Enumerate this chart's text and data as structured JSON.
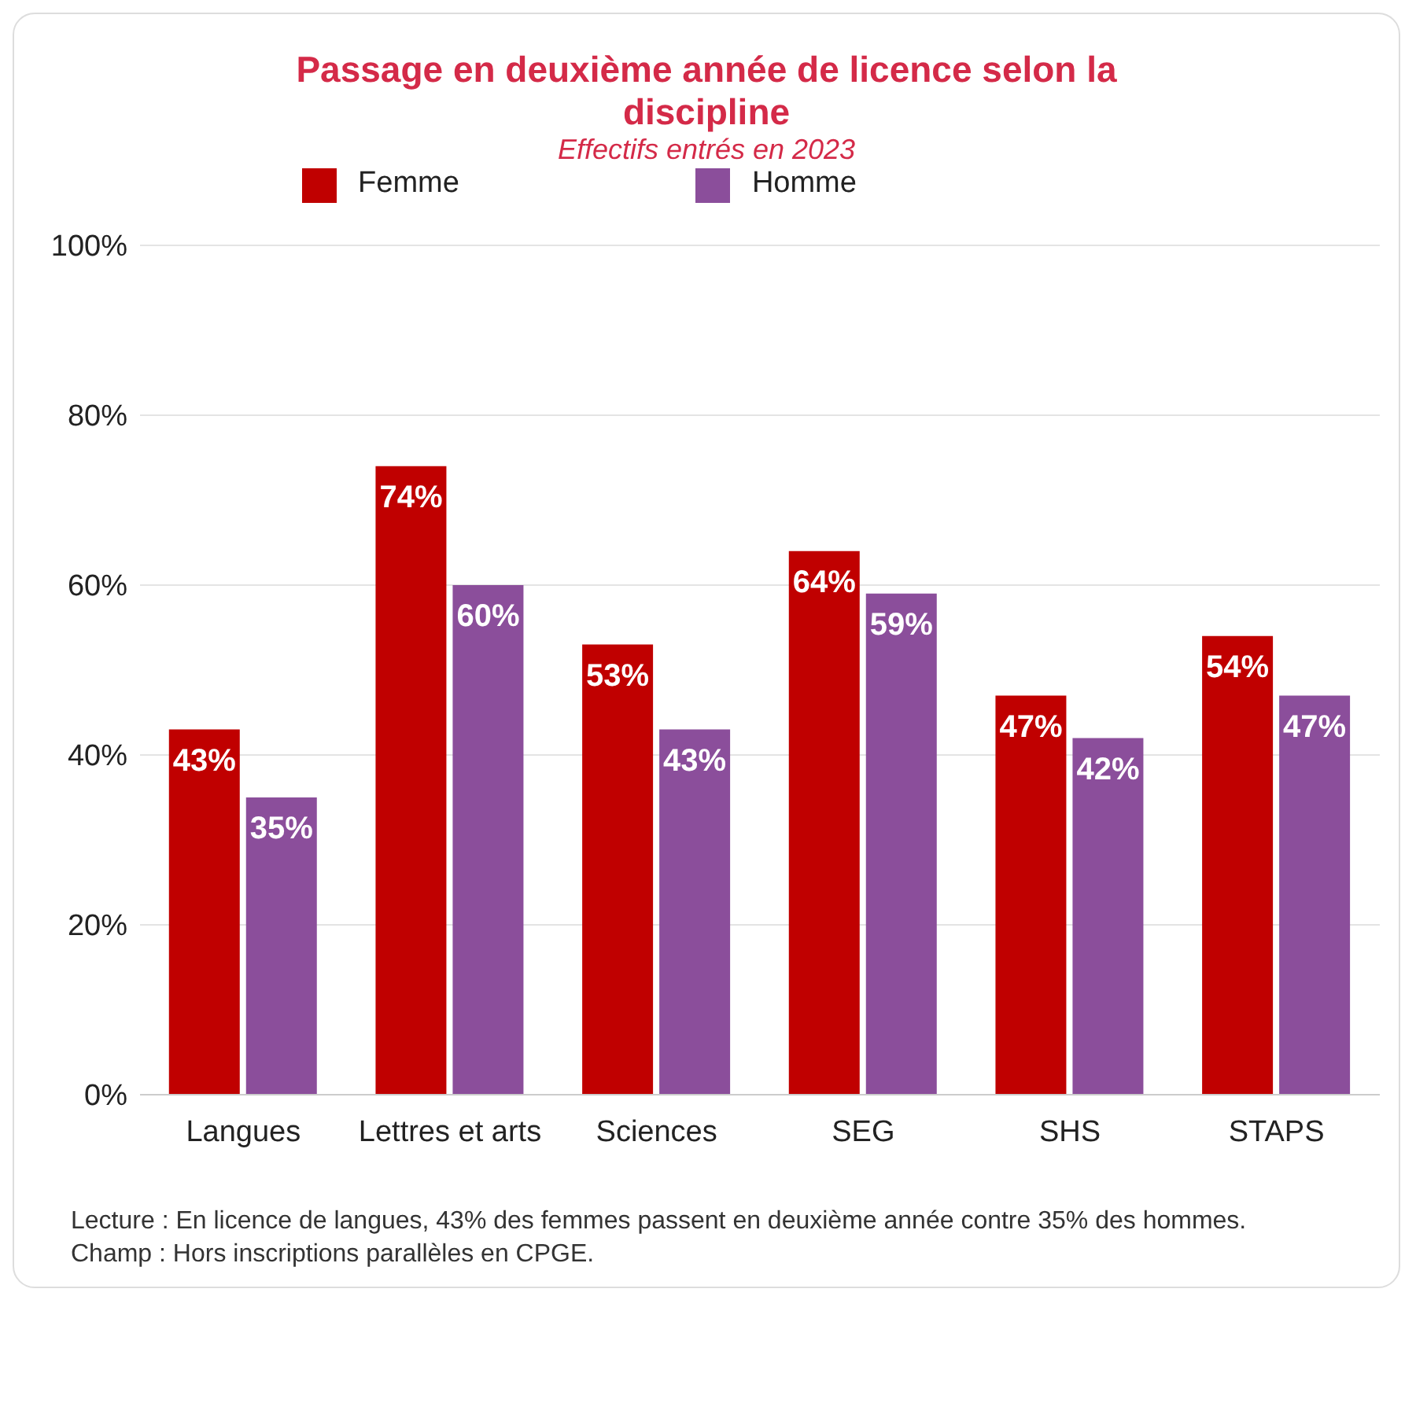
{
  "chart_data": {
    "type": "bar",
    "title": "Passage en deuxième année de licence selon la discipline",
    "subtitle": "Effectifs entrés en 2023",
    "categories": [
      "Langues",
      "Lettres et arts",
      "Sciences",
      "SEG",
      "SHS",
      "STAPS"
    ],
    "series": [
      {
        "name": "Femme",
        "color": "#c00000",
        "values": [
          43,
          74,
          53,
          64,
          47,
          54
        ],
        "value_labels": [
          "43%",
          "74%",
          "53%",
          "64%",
          "47%",
          "54%"
        ]
      },
      {
        "name": "Homme",
        "color": "#8b4e9b",
        "values": [
          35,
          60,
          43,
          59,
          42,
          47
        ],
        "value_labels": [
          "35%",
          "60%",
          "43%",
          "59%",
          "42%",
          "47%"
        ]
      }
    ],
    "ylim": [
      0,
      100
    ],
    "yticks": [
      {
        "value": 0,
        "label": "0%"
      },
      {
        "value": 20,
        "label": "20%"
      },
      {
        "value": 40,
        "label": "40%"
      },
      {
        "value": 60,
        "label": "60%"
      },
      {
        "value": 80,
        "label": "80%"
      },
      {
        "value": 100,
        "label": "100%"
      }
    ],
    "grid": "y",
    "legend": "top",
    "annotations": [
      "Lecture : En licence de langues, 43% des femmes passent en deuxième année contre 35% des hommes.",
      "Champ : Hors inscriptions parallèles en CPGE."
    ]
  }
}
